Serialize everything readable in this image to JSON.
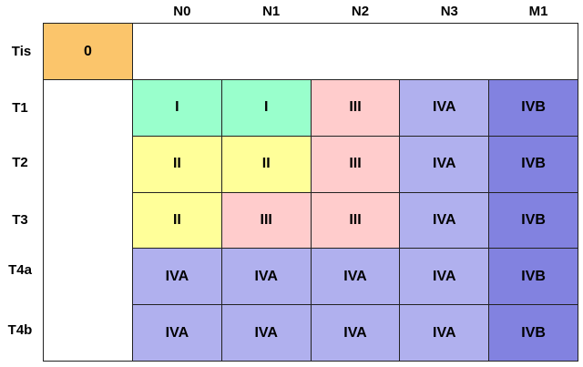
{
  "table": {
    "columns": [
      "N0",
      "N1",
      "N2",
      "N3",
      "M1"
    ],
    "tis": {
      "label": "Tis",
      "stage": "0"
    },
    "rows": [
      {
        "label": "T1",
        "cells": [
          "I",
          "I",
          "III",
          "IVA",
          "IVB"
        ]
      },
      {
        "label": "T2",
        "cells": [
          "II",
          "II",
          "III",
          "IVA",
          "IVB"
        ]
      },
      {
        "label": "T3",
        "cells": [
          "II",
          "III",
          "III",
          "IVA",
          "IVB"
        ]
      },
      {
        "label": "T4a",
        "cells": [
          "IVA",
          "IVA",
          "IVA",
          "IVA",
          "IVB"
        ]
      },
      {
        "label": "T4b",
        "cells": [
          "IVA",
          "IVA",
          "IVA",
          "IVA",
          "IVB"
        ]
      }
    ],
    "stage_colors": {
      "0": "#fbc56b",
      "I": "#99ffcc",
      "II": "#ffff99",
      "III": "#ffcccc",
      "IVA": "#b0b0ee",
      "IVB": "#8282e0"
    }
  }
}
